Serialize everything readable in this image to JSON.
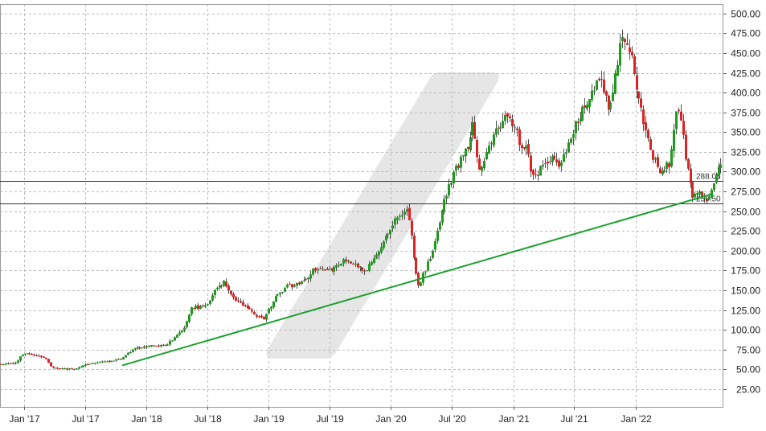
{
  "chart_data": {
    "type": "candlestick",
    "title": "",
    "xlabel": "",
    "ylabel": "",
    "ylim": [
      0,
      510
    ],
    "y_axis_position": "right",
    "grid": true,
    "colors": {
      "up": "#1e9a1e",
      "down": "#dd2222",
      "trendline": "#1aa02c",
      "level_line": "#333333",
      "grid": "#bbbbbb",
      "watermark": "#e8e8e8"
    },
    "y_ticks": [
      {
        "value": 25,
        "label": "25.00"
      },
      {
        "value": 50,
        "label": "50.00"
      },
      {
        "value": 75,
        "label": "75.00"
      },
      {
        "value": 100,
        "label": "100.00"
      },
      {
        "value": 125,
        "label": "125.00"
      },
      {
        "value": 150,
        "label": "150.00"
      },
      {
        "value": 175,
        "label": "175.00"
      },
      {
        "value": 200,
        "label": "200.00"
      },
      {
        "value": 225,
        "label": "225.00"
      },
      {
        "value": 250,
        "label": "250.00"
      },
      {
        "value": 275,
        "label": "275.00"
      },
      {
        "value": 300,
        "label": "300.00"
      },
      {
        "value": 325,
        "label": "325.00"
      },
      {
        "value": 350,
        "label": "350.00"
      },
      {
        "value": 375,
        "label": "375.00"
      },
      {
        "value": 400,
        "label": "400.00"
      },
      {
        "value": 425,
        "label": "425.00"
      },
      {
        "value": 450,
        "label": "450.00"
      },
      {
        "value": 475,
        "label": "475.00"
      },
      {
        "value": 500,
        "label": "500.00"
      }
    ],
    "x_ticks": [
      {
        "date": "2017-01-01",
        "label": "Jan '17"
      },
      {
        "date": "2017-07-01",
        "label": "Jul '17"
      },
      {
        "date": "2018-01-01",
        "label": "Jan '18"
      },
      {
        "date": "2018-07-01",
        "label": "Jul '18"
      },
      {
        "date": "2019-01-01",
        "label": "Jan '19"
      },
      {
        "date": "2019-07-01",
        "label": "Jul '19"
      },
      {
        "date": "2020-01-01",
        "label": "Jan '20"
      },
      {
        "date": "2020-07-01",
        "label": "Jul '20"
      },
      {
        "date": "2021-01-01",
        "label": "Jan '21"
      },
      {
        "date": "2021-07-01",
        "label": "Jul '21"
      },
      {
        "date": "2022-01-01",
        "label": "Jan '22"
      }
    ],
    "x_range": [
      "2016-10-20",
      "2022-09-20"
    ],
    "horizontal_levels": [
      {
        "value": 288.06,
        "label": "288.06"
      },
      {
        "value": 259.5,
        "label": "259.50"
      }
    ],
    "trendline": {
      "start": {
        "date": "2017-10-20",
        "value": 55
      },
      "end": {
        "date": "2022-08-20",
        "value": 272
      }
    },
    "price_path": [
      {
        "date": "2016-10-20",
        "value": 57
      },
      {
        "date": "2016-12-10",
        "value": 58
      },
      {
        "date": "2016-12-25",
        "value": 68
      },
      {
        "date": "2017-01-20",
        "value": 70
      },
      {
        "date": "2017-03-05",
        "value": 65
      },
      {
        "date": "2017-03-25",
        "value": 52
      },
      {
        "date": "2017-06-01",
        "value": 50
      },
      {
        "date": "2017-07-15",
        "value": 57
      },
      {
        "date": "2017-09-15",
        "value": 60
      },
      {
        "date": "2017-10-20",
        "value": 63
      },
      {
        "date": "2017-11-25",
        "value": 76
      },
      {
        "date": "2018-01-20",
        "value": 80
      },
      {
        "date": "2018-03-01",
        "value": 80
      },
      {
        "date": "2018-04-25",
        "value": 100
      },
      {
        "date": "2018-05-15",
        "value": 127
      },
      {
        "date": "2018-07-01",
        "value": 130
      },
      {
        "date": "2018-08-01",
        "value": 153
      },
      {
        "date": "2018-08-25",
        "value": 160
      },
      {
        "date": "2018-09-20",
        "value": 140
      },
      {
        "date": "2018-10-20",
        "value": 130
      },
      {
        "date": "2018-11-25",
        "value": 120
      },
      {
        "date": "2018-12-20",
        "value": 112
      },
      {
        "date": "2019-01-20",
        "value": 140
      },
      {
        "date": "2019-03-01",
        "value": 155
      },
      {
        "date": "2019-04-15",
        "value": 160
      },
      {
        "date": "2019-05-15",
        "value": 175
      },
      {
        "date": "2019-07-01",
        "value": 175
      },
      {
        "date": "2019-08-25",
        "value": 190
      },
      {
        "date": "2019-10-20",
        "value": 175
      },
      {
        "date": "2019-11-25",
        "value": 195
      },
      {
        "date": "2020-01-01",
        "value": 230
      },
      {
        "date": "2020-02-10",
        "value": 248
      },
      {
        "date": "2020-02-25",
        "value": 250
      },
      {
        "date": "2020-03-10",
        "value": 200
      },
      {
        "date": "2020-03-25",
        "value": 155
      },
      {
        "date": "2020-04-15",
        "value": 175
      },
      {
        "date": "2020-05-15",
        "value": 210
      },
      {
        "date": "2020-06-10",
        "value": 260
      },
      {
        "date": "2020-07-01",
        "value": 290
      },
      {
        "date": "2020-07-25",
        "value": 310
      },
      {
        "date": "2020-08-20",
        "value": 330
      },
      {
        "date": "2020-09-05",
        "value": 370
      },
      {
        "date": "2020-09-20",
        "value": 300
      },
      {
        "date": "2020-10-20",
        "value": 330
      },
      {
        "date": "2020-11-25",
        "value": 360
      },
      {
        "date": "2020-12-20",
        "value": 375
      },
      {
        "date": "2021-01-20",
        "value": 340
      },
      {
        "date": "2021-02-15",
        "value": 325
      },
      {
        "date": "2021-03-05",
        "value": 290
      },
      {
        "date": "2021-04-01",
        "value": 310
      },
      {
        "date": "2021-05-01",
        "value": 320
      },
      {
        "date": "2021-05-25",
        "value": 305
      },
      {
        "date": "2021-06-20",
        "value": 340
      },
      {
        "date": "2021-07-20",
        "value": 370
      },
      {
        "date": "2021-08-25",
        "value": 400
      },
      {
        "date": "2021-09-20",
        "value": 415
      },
      {
        "date": "2021-10-15",
        "value": 380
      },
      {
        "date": "2021-11-05",
        "value": 420
      },
      {
        "date": "2021-11-25",
        "value": 475
      },
      {
        "date": "2021-12-20",
        "value": 450
      },
      {
        "date": "2022-01-05",
        "value": 410
      },
      {
        "date": "2022-01-25",
        "value": 370
      },
      {
        "date": "2022-02-20",
        "value": 320
      },
      {
        "date": "2022-03-20",
        "value": 300
      },
      {
        "date": "2022-04-15",
        "value": 310
      },
      {
        "date": "2022-05-05",
        "value": 380
      },
      {
        "date": "2022-05-20",
        "value": 360
      },
      {
        "date": "2022-06-05",
        "value": 310
      },
      {
        "date": "2022-06-20",
        "value": 270
      },
      {
        "date": "2022-07-15",
        "value": 275
      },
      {
        "date": "2022-08-05",
        "value": 260
      },
      {
        "date": "2022-08-25",
        "value": 285
      },
      {
        "date": "2022-09-10",
        "value": 305
      }
    ]
  }
}
